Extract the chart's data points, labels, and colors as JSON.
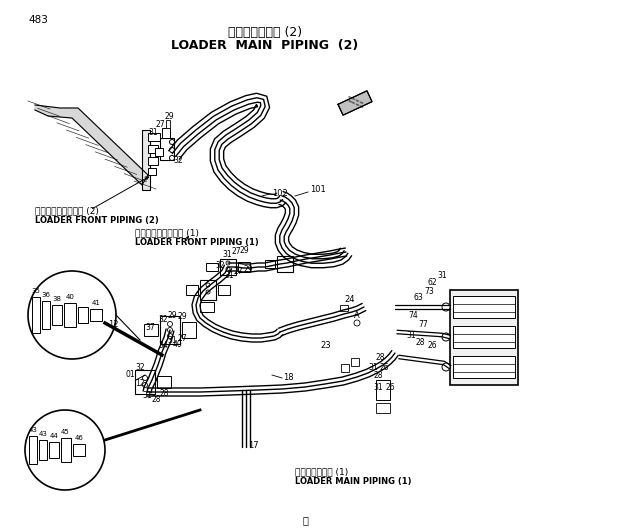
{
  "title_jp": "ローダ本体配管 (2)",
  "title_en": "LOADER  MAIN  PIPING  (2)",
  "page_num": "483",
  "bg_color": "#ffffff",
  "lc": "#000000",
  "label_fp2_jp": "ローダフロント配管 (2)",
  "label_fp2_en": "LOADER FRONT PIPING (2)",
  "label_fp1_jp": "ローダフロント配管 (1)",
  "label_fp1_en": "LOADER FRONT PIPING (1)",
  "label_mp1_jp": "ローダ本体配管 (1)",
  "label_mp1_en": "LOADER MAIN PIPING (1)",
  "footer": "Ⓡ"
}
